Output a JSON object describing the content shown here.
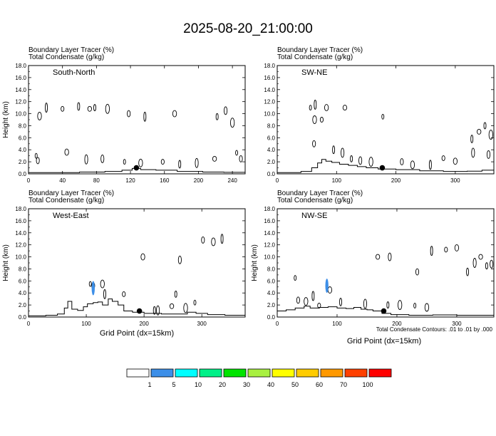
{
  "title": "2025-08-20_21:00:00",
  "contour_note": "Total Condensate Contours: .01 to .01 by .000",
  "xlabel": "Grid Point (dx=15km)",
  "panel_header": {
    "line1_name": "Boundary Layer Tracer",
    "line1_unit": "(%)",
    "line2_name": "Total Condensate",
    "line2_unit": "(g/kg)"
  },
  "colors": {
    "terrain": "#000000",
    "tracer_fill": "#3d8fe8",
    "contour": "#000000",
    "marker": "#000000"
  },
  "chart_data": [
    {
      "type": "line",
      "panel": "South-North",
      "ylabel": "Height (km)",
      "ylim": [
        0,
        18
      ],
      "xlim": [
        0,
        255
      ],
      "xticks": [
        0,
        40,
        80,
        120,
        160,
        200,
        240
      ],
      "yticks": [
        "0.0",
        "2.0",
        "4.0",
        "6.0",
        "8.0",
        "10.0",
        "12.0",
        "14.0",
        "16.0",
        "18.0"
      ],
      "terrain": [
        [
          0,
          0.2
        ],
        [
          60,
          0.3
        ],
        [
          90,
          0.4
        ],
        [
          110,
          0.6
        ],
        [
          122,
          0.9
        ],
        [
          132,
          0.7
        ],
        [
          150,
          0.6
        ],
        [
          175,
          0.4
        ],
        [
          205,
          0.3
        ],
        [
          230,
          0.25
        ],
        [
          255,
          0.2
        ]
      ],
      "marker": [
        127,
        1.0
      ],
      "contours": [
        [
          9,
          3
        ],
        [
          11,
          2.2
        ],
        [
          13,
          9.6
        ],
        [
          21,
          11
        ],
        [
          40,
          10.8
        ],
        [
          45,
          3.6
        ],
        [
          59,
          11.2
        ],
        [
          68,
          2.4
        ],
        [
          72,
          10.8
        ],
        [
          78,
          11
        ],
        [
          87,
          2.5
        ],
        [
          93,
          10.8
        ],
        [
          113,
          2
        ],
        [
          118,
          10
        ],
        [
          132,
          1.8
        ],
        [
          137,
          9.5
        ],
        [
          158,
          2
        ],
        [
          172,
          10
        ],
        [
          178,
          1.6
        ],
        [
          198,
          1.8
        ],
        [
          219,
          2.5
        ],
        [
          222,
          9.5
        ],
        [
          232,
          10.5
        ],
        [
          240,
          8.5
        ],
        [
          245,
          3.5
        ],
        [
          250,
          2.5
        ]
      ],
      "tracer_blobs": []
    },
    {
      "type": "line",
      "panel": "SW-NE",
      "ylabel": "",
      "ylim": [
        0,
        18
      ],
      "xlim": [
        0,
        365
      ],
      "xticks": [
        0,
        100,
        200,
        300
      ],
      "yticks": [
        "0.0",
        "2.0",
        "4.0",
        "6.0",
        "8.0",
        "10.0",
        "12.0",
        "14.0",
        "16.0",
        "18.0"
      ],
      "terrain": [
        [
          0,
          0.2
        ],
        [
          40,
          0.4
        ],
        [
          58,
          1.0
        ],
        [
          68,
          1.8
        ],
        [
          75,
          2.4
        ],
        [
          82,
          2.1
        ],
        [
          92,
          1.9
        ],
        [
          105,
          1.6
        ],
        [
          120,
          1.4
        ],
        [
          135,
          1.2
        ],
        [
          150,
          1.0
        ],
        [
          170,
          0.8
        ],
        [
          200,
          0.7
        ],
        [
          240,
          0.5
        ],
        [
          280,
          0.4
        ],
        [
          320,
          0.45
        ],
        [
          345,
          0.6
        ],
        [
          365,
          0.8
        ]
      ],
      "marker": [
        177,
        1.0
      ],
      "contours": [
        [
          56,
          11
        ],
        [
          62,
          5
        ],
        [
          63,
          9
        ],
        [
          64,
          11.5
        ],
        [
          75,
          9
        ],
        [
          83,
          11
        ],
        [
          95,
          4
        ],
        [
          110,
          3.5
        ],
        [
          114,
          11
        ],
        [
          125,
          2.5
        ],
        [
          140,
          2.2
        ],
        [
          158,
          2
        ],
        [
          178,
          9.5
        ],
        [
          210,
          2
        ],
        [
          228,
          1.5
        ],
        [
          258,
          1.5
        ],
        [
          280,
          2.6
        ],
        [
          300,
          2.1
        ],
        [
          328,
          5.8
        ],
        [
          330,
          3.5
        ],
        [
          340,
          7
        ],
        [
          350,
          8
        ],
        [
          356,
          3.2
        ],
        [
          360,
          6.5
        ]
      ],
      "tracer_blobs": []
    },
    {
      "type": "line",
      "panel": "West-East",
      "ylabel": "Height (km)",
      "ylim": [
        0,
        18
      ],
      "xlim": [
        0,
        375
      ],
      "xticks": [
        0,
        100,
        200,
        300
      ],
      "yticks": [
        "0.0",
        "2.0",
        "4.0",
        "6.0",
        "8.0",
        "10.0",
        "12.0",
        "14.0",
        "16.0",
        "18.0"
      ],
      "terrain": [
        [
          0,
          0.2
        ],
        [
          30,
          0.3
        ],
        [
          50,
          0.5
        ],
        [
          62,
          1.5
        ],
        [
          68,
          2.6
        ],
        [
          75,
          1.3
        ],
        [
          85,
          1.1
        ],
        [
          95,
          1.7
        ],
        [
          102,
          2.2
        ],
        [
          112,
          2.4
        ],
        [
          120,
          2.5
        ],
        [
          128,
          2.0
        ],
        [
          138,
          3.0
        ],
        [
          145,
          2.6
        ],
        [
          155,
          2.0
        ],
        [
          165,
          1.0
        ],
        [
          180,
          0.8
        ],
        [
          200,
          0.6
        ],
        [
          230,
          0.5
        ],
        [
          260,
          0.5
        ],
        [
          275,
          0.8
        ],
        [
          290,
          0.6
        ],
        [
          310,
          0.4
        ],
        [
          340,
          0.3
        ],
        [
          375,
          0.3
        ]
      ],
      "marker": [
        192,
        1.0
      ],
      "contours": [
        [
          107,
          5.5
        ],
        [
          112,
          5.2
        ],
        [
          128,
          5.5
        ],
        [
          132,
          3.8
        ],
        [
          165,
          3.8
        ],
        [
          198,
          10
        ],
        [
          218,
          1.1
        ],
        [
          224,
          1.1
        ],
        [
          248,
          1.8
        ],
        [
          255,
          3.8
        ],
        [
          262,
          9.5
        ],
        [
          272,
          1.5
        ],
        [
          288,
          2.4
        ],
        [
          302,
          12.8
        ],
        [
          320,
          12.5
        ],
        [
          335,
          13
        ]
      ],
      "tracer_blobs": [
        [
          112,
          4.8
        ]
      ]
    },
    {
      "type": "line",
      "panel": "NW-SE",
      "ylabel": "Height (km)",
      "ylim": [
        0,
        18
      ],
      "xlim": [
        0,
        362
      ],
      "xticks": [
        0,
        100,
        200,
        300
      ],
      "yticks": [
        "0.0",
        "2.0",
        "4.0",
        "6.0",
        "8.0",
        "10.0",
        "12.0",
        "14.0",
        "16.0",
        "18.0"
      ],
      "terrain": [
        [
          0,
          1.0
        ],
        [
          15,
          1.2
        ],
        [
          30,
          1.5
        ],
        [
          45,
          1.8
        ],
        [
          55,
          1.5
        ],
        [
          70,
          1.6
        ],
        [
          85,
          1.7
        ],
        [
          100,
          1.5
        ],
        [
          115,
          1.4
        ],
        [
          128,
          1.6
        ],
        [
          140,
          1.3
        ],
        [
          150,
          1.2
        ],
        [
          160,
          1.0
        ],
        [
          175,
          0.6
        ],
        [
          190,
          0.4
        ],
        [
          220,
          0.3
        ],
        [
          260,
          0.35
        ],
        [
          300,
          0.3
        ],
        [
          362,
          0.3
        ]
      ],
      "marker": [
        178,
        1.0
      ],
      "contours": [
        [
          30,
          6.5
        ],
        [
          35,
          2.8
        ],
        [
          48,
          2.6
        ],
        [
          60,
          3.5
        ],
        [
          70,
          1.9
        ],
        [
          88,
          4.5
        ],
        [
          106,
          2.5
        ],
        [
          147,
          2.2
        ],
        [
          168,
          10
        ],
        [
          185,
          2
        ],
        [
          188,
          10
        ],
        [
          205,
          2
        ],
        [
          230,
          1.9
        ],
        [
          234,
          7.5
        ],
        [
          250,
          1.6
        ],
        [
          258,
          11
        ],
        [
          282,
          11.2
        ],
        [
          300,
          11.5
        ],
        [
          318,
          7.5
        ],
        [
          330,
          9
        ],
        [
          340,
          10
        ],
        [
          350,
          8.5
        ],
        [
          358,
          8.8
        ]
      ],
      "tracer_blobs": [
        [
          83,
          5.2
        ]
      ]
    }
  ],
  "colorbar": {
    "labels": [
      "1",
      "5",
      "10",
      "20",
      "30",
      "40",
      "50",
      "60",
      "70",
      "100"
    ],
    "colors": [
      "#ffffff",
      "#3d8fe8",
      "#00ffff",
      "#00f088",
      "#00e400",
      "#a8f040",
      "#ffff00",
      "#ffcc00",
      "#ff9900",
      "#ff4000",
      "#ff0000"
    ]
  }
}
